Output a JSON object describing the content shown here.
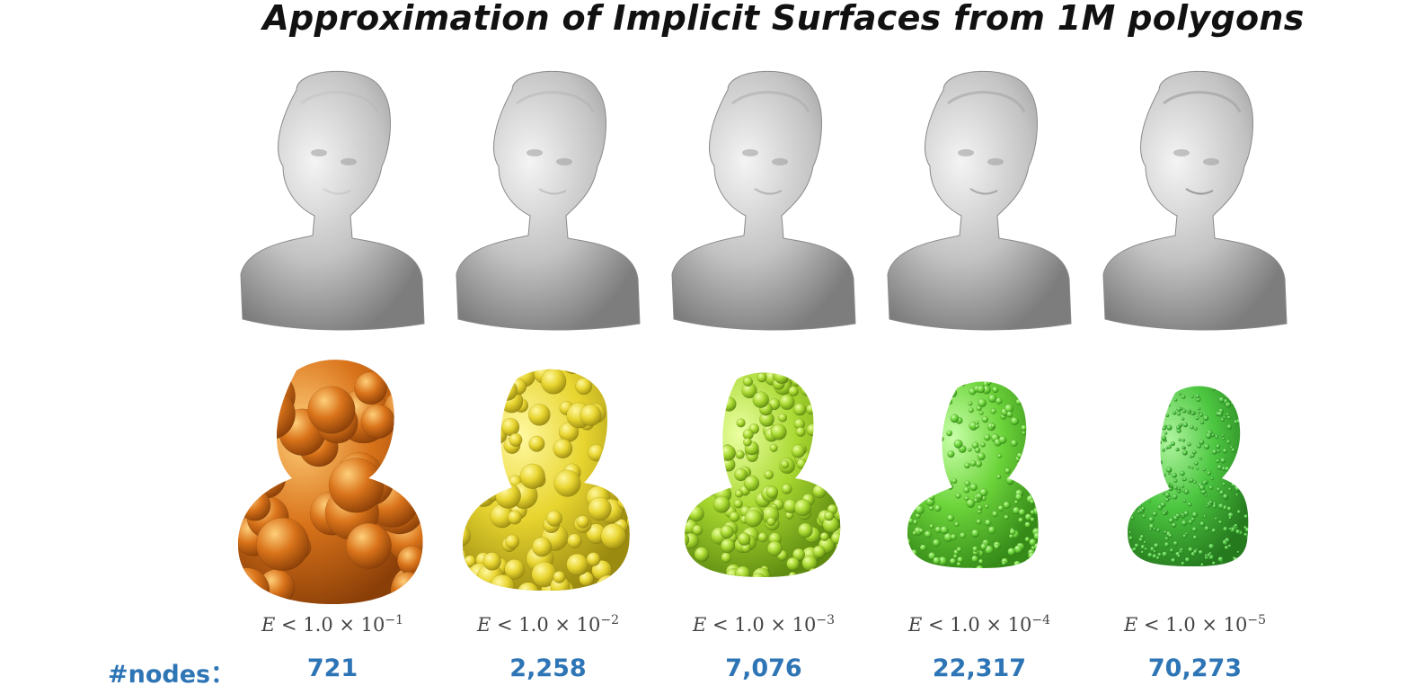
{
  "title": "Approximation of Implicit Surfaces from 1M polygons",
  "nodes_label": "#nodes：",
  "columns": [
    {
      "error_var": "E",
      "error_base": "1.0",
      "error_exp": "−1",
      "nodes": "721",
      "color": "#d9731a"
    },
    {
      "error_var": "E",
      "error_base": "1.0",
      "error_exp": "−2",
      "nodes": "2,258",
      "color": "#e8d530"
    },
    {
      "error_var": "E",
      "error_base": "1.0",
      "error_exp": "−3",
      "nodes": "7,076",
      "color": "#a8d830"
    },
    {
      "error_var": "E",
      "error_base": "1.0",
      "error_exp": "−4",
      "nodes": "22,317",
      "color": "#6cd43a"
    },
    {
      "error_var": "E",
      "error_base": "1.0",
      "error_exp": "−5",
      "nodes": "70,273",
      "color": "#4cc640"
    }
  ]
}
